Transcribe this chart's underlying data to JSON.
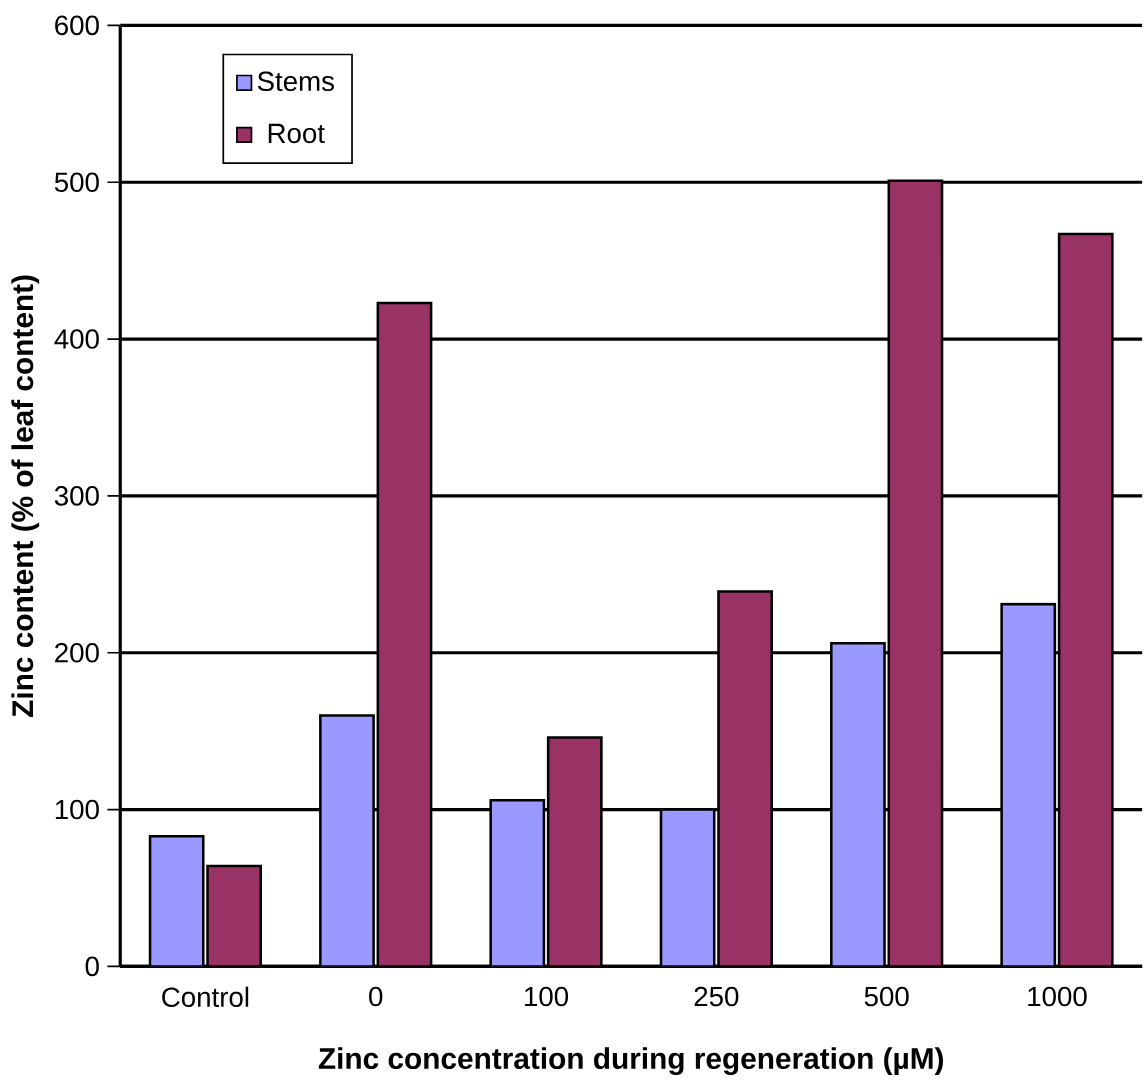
{
  "chart_data": {
    "type": "bar",
    "xlabel": "Zinc concentration during regeneration (µM)",
    "ylabel": "Zinc content (% of leaf content)",
    "categories": [
      "Control",
      "0",
      "100",
      "250",
      "500",
      "1000"
    ],
    "series": [
      {
        "name": "Stems",
        "color": "#9999ff",
        "values": [
          83,
          160,
          106,
          100,
          206,
          231
        ]
      },
      {
        "name": "Root",
        "color": "#993366",
        "values": [
          64,
          423,
          146,
          239,
          501,
          467
        ]
      }
    ],
    "ylim": [
      0,
      600
    ],
    "yticks": [
      0,
      100,
      200,
      300,
      400,
      500,
      600
    ],
    "grid": "y",
    "legend": "top left"
  }
}
